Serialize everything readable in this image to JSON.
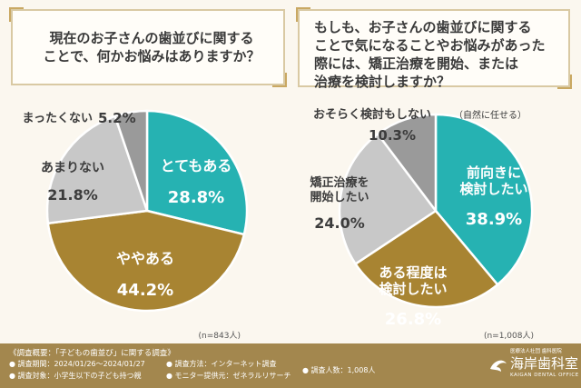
{
  "colors": {
    "teal": "#26b2b2",
    "brown": "#a88432",
    "light_gray": "#c8c8c8",
    "dark_gray": "#9a9a9a",
    "frame": "#d9c9a3",
    "footer_bg": "#a3874e"
  },
  "questions": {
    "q1": "現在のお子さんの歯並びに関する\nことで、何かお悩みはありますか？",
    "q2": "もしも、お子さんの歯並びに関する\nことで気になることやお悩みがあった\n際には、矯正治療を開始、または\n治療を検討しますか？"
  },
  "chart_data": [
    {
      "type": "pie",
      "slices": [
        {
          "label": "とてもある",
          "value": 28.8,
          "color": "#26b2b2"
        },
        {
          "label": "ややある",
          "value": 44.2,
          "color": "#a88432"
        },
        {
          "label": "あまりない",
          "value": 21.8,
          "color": "#c8c8c8"
        },
        {
          "label": "まったくない",
          "value": 5.2,
          "color": "#9a9a9a"
        }
      ],
      "sample_note": "(n=843人)"
    },
    {
      "type": "pie",
      "slices": [
        {
          "label": "前向きに\n検討したい",
          "value": 38.9,
          "color": "#26b2b2"
        },
        {
          "label": "ある程度は\n検討したい",
          "value": 26.8,
          "color": "#a88432"
        },
        {
          "label": "矯正治療を\n開始したい",
          "value": 24.0,
          "color": "#c8c8c8"
        },
        {
          "label": "おそらく検討もしない",
          "sublabel": "（自然に任せる）",
          "value": 10.3,
          "color": "#9a9a9a"
        }
      ],
      "sample_note": "(n=1,008人)"
    }
  ],
  "survey": {
    "heading": "《調査概要：「子どもの歯並び」に関する調査》",
    "period": "調査期間：2024/01/26～2024/01/27",
    "target": "調査対象：小学生以下の子ども持つ親",
    "method": "調査方法：インターネット調査",
    "provider": "モニター提供元：ゼネラルリサーチ",
    "count": "調査人数：1,008人"
  },
  "logo": {
    "corp": "医療法人社団 歯科医院",
    "name": "海岸歯科室",
    "roman": "KAIGAN DENTAL OFFICE"
  }
}
